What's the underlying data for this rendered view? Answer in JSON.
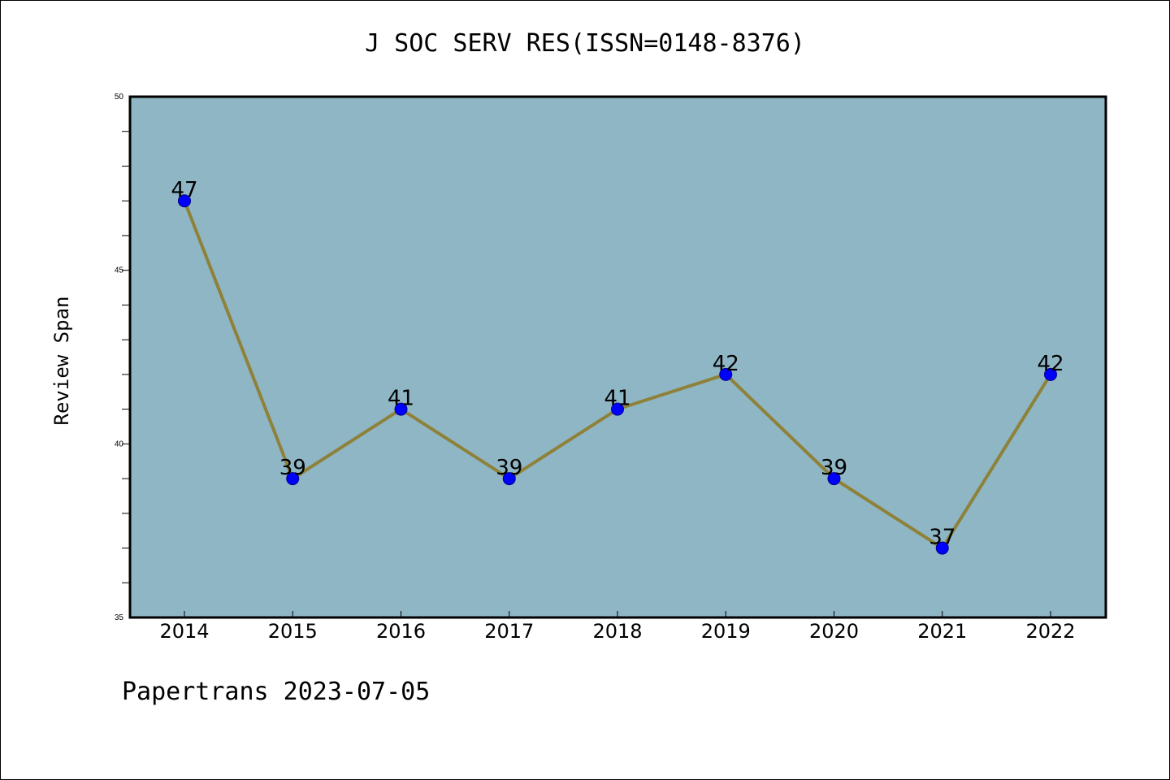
{
  "chart_data": {
    "type": "line",
    "title": "J SOC SERV RES(ISSN=0148-8376)",
    "xlabel": "",
    "ylabel": "Review Span",
    "categories": [
      "2014",
      "2015",
      "2016",
      "2017",
      "2018",
      "2019",
      "2020",
      "2021",
      "2022"
    ],
    "series": [
      {
        "values": [
          47,
          39,
          41,
          39,
          41,
          42,
          39,
          37,
          42
        ]
      }
    ],
    "data_labels": [
      "47",
      "39",
      "41",
      "39",
      "41",
      "42",
      "39",
      "37",
      "42"
    ],
    "ylim": [
      35,
      50
    ],
    "y_ticks": [
      "35",
      "40",
      "45",
      "50"
    ],
    "grid": false,
    "colors": {
      "plot_background": "#8fb6c5",
      "line": "#8e8139",
      "marker": "#0000ff"
    }
  },
  "footer": {
    "text": "Papertrans 2023-07-05"
  }
}
